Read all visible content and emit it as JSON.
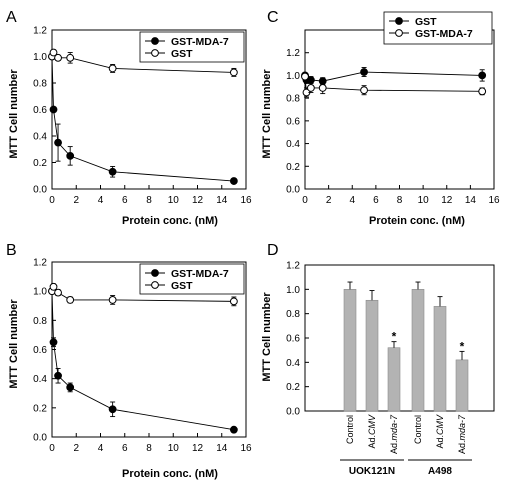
{
  "chart_data": [
    {
      "panel": "A",
      "type": "line",
      "xlabel": "Protein conc. (nM)",
      "ylabel": "MTT Cell number",
      "xlim": [
        0,
        16
      ],
      "ylim": [
        0,
        1.2
      ],
      "xticks": [
        "0",
        "2",
        "4",
        "6",
        "8",
        "10",
        "12",
        "14",
        "16"
      ],
      "yticks": [
        "0.0",
        "0.2",
        "0.4",
        "0.6",
        "0.8",
        "1.0",
        "1.2"
      ],
      "legend_position": "top-right",
      "series": [
        {
          "name": "GST-MDA-7",
          "marker": "filled",
          "x": [
            0,
            0.125,
            0.5,
            1.5,
            5,
            15
          ],
          "y": [
            1.0,
            0.6,
            0.35,
            0.25,
            0.13,
            0.06
          ],
          "err": [
            0,
            0,
            0.14,
            0.07,
            0.04,
            0.01
          ]
        },
        {
          "name": "GST",
          "marker": "open",
          "x": [
            0,
            0.125,
            0.5,
            1.5,
            5,
            15
          ],
          "y": [
            1.0,
            1.03,
            0.99,
            0.99,
            0.91,
            0.88
          ],
          "err": [
            0,
            0.02,
            0.02,
            0.04,
            0.03,
            0.03
          ]
        }
      ]
    },
    {
      "panel": "B",
      "type": "line",
      "xlabel": "Protein conc. (nM)",
      "ylabel": "MTT Cell number",
      "xlim": [
        0,
        16
      ],
      "ylim": [
        0,
        1.2
      ],
      "xticks": [
        "0",
        "2",
        "4",
        "6",
        "8",
        "10",
        "12",
        "14",
        "16"
      ],
      "yticks": [
        "0.0",
        "0.2",
        "0.4",
        "0.6",
        "0.8",
        "1.0",
        "1.2"
      ],
      "legend_position": "top-right",
      "series": [
        {
          "name": "GST-MDA-7",
          "marker": "filled",
          "x": [
            0,
            0.125,
            0.5,
            1.5,
            5,
            15
          ],
          "y": [
            1.0,
            0.65,
            0.42,
            0.34,
            0.19,
            0.05
          ],
          "err": [
            0,
            0.03,
            0.05,
            0.03,
            0.05,
            0.01
          ]
        },
        {
          "name": "GST",
          "marker": "open",
          "x": [
            0,
            0.125,
            0.5,
            1.5,
            5,
            15
          ],
          "y": [
            1.0,
            1.03,
            0.99,
            0.94,
            0.94,
            0.93
          ],
          "err": [
            0,
            0.02,
            0.02,
            0.02,
            0.03,
            0.03
          ]
        }
      ]
    },
    {
      "panel": "C",
      "type": "line",
      "xlabel": "Protein conc. (nM)",
      "ylabel": "MTT Cell number",
      "xlim": [
        0,
        16
      ],
      "ylim": [
        0,
        1.4
      ],
      "xticks": [
        "0",
        "2",
        "4",
        "6",
        "8",
        "10",
        "12",
        "14",
        "16"
      ],
      "yticks": [
        "0.0",
        "0.2",
        "0.4",
        "0.6",
        "0.8",
        "1.0",
        "1.2"
      ],
      "legend_position": "top-right",
      "series": [
        {
          "name": "GST",
          "marker": "filled",
          "x": [
            0,
            0.125,
            0.5,
            1.5,
            5,
            15
          ],
          "y": [
            1.0,
            0.96,
            0.96,
            0.95,
            1.03,
            1.0
          ],
          "err": [
            0,
            0.03,
            0.03,
            0.03,
            0.04,
            0.05
          ]
        },
        {
          "name": "GST-MDA-7",
          "marker": "open",
          "x": [
            0,
            0.125,
            0.5,
            1.5,
            5,
            15
          ],
          "y": [
            0.99,
            0.85,
            0.89,
            0.89,
            0.87,
            0.86
          ],
          "err": [
            0,
            0.04,
            0.04,
            0.05,
            0.04,
            0.03
          ]
        }
      ]
    },
    {
      "panel": "D",
      "type": "bar",
      "ylabel": "MTT Cell number",
      "ylim": [
        0,
        1.2
      ],
      "yticks": [
        "0.0",
        "0.2",
        "0.4",
        "0.6",
        "0.8",
        "1.0",
        "1.2"
      ],
      "groups": [
        {
          "name": "UOK121N",
          "categories": [
            "Control",
            "Ad.CMV",
            "Ad.mda-7"
          ],
          "values": [
            1.0,
            0.91,
            0.52
          ],
          "err": [
            0.06,
            0.08,
            0.05
          ],
          "significant": [
            false,
            false,
            true
          ]
        },
        {
          "name": "A498",
          "categories": [
            "Control",
            "Ad.CMV",
            "Ad.mda-7"
          ],
          "values": [
            1.0,
            0.86,
            0.42
          ],
          "err": [
            0.06,
            0.08,
            0.07
          ],
          "significant": [
            false,
            false,
            true
          ]
        }
      ],
      "significance_marker": "*"
    }
  ]
}
